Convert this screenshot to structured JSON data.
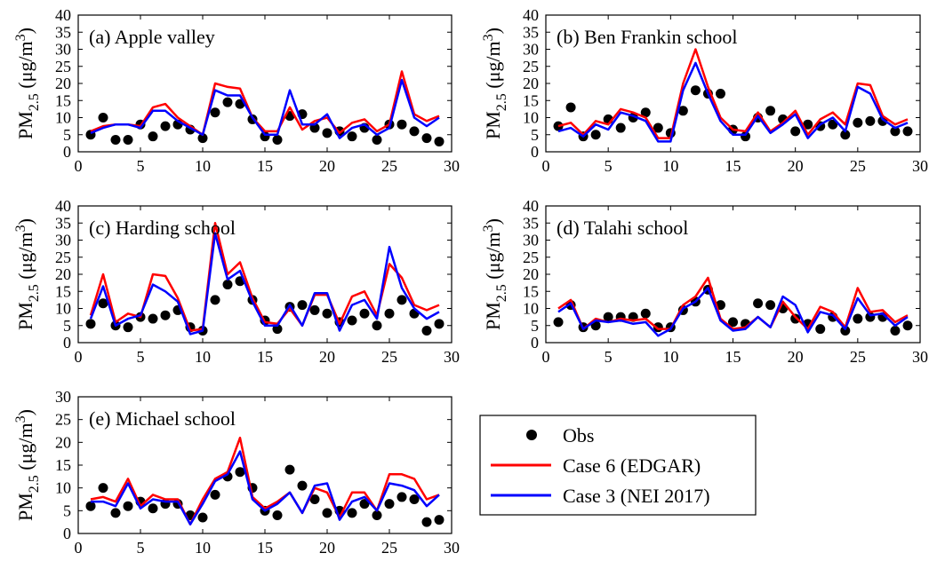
{
  "chart_data": [
    {
      "type": "line",
      "title": "(a) Apple valley",
      "ylabel": [
        "PM",
        "2.5",
        " (μg/m",
        "3",
        ")"
      ],
      "x": [
        1,
        2,
        3,
        4,
        5,
        6,
        7,
        8,
        9,
        10,
        11,
        12,
        13,
        14,
        15,
        16,
        17,
        18,
        19,
        20,
        21,
        22,
        23,
        24,
        25,
        26,
        27,
        28,
        29
      ],
      "xlim": [
        0,
        30
      ],
      "xticks": [
        0,
        5,
        10,
        15,
        20,
        25,
        30
      ],
      "ylim": [
        0,
        40
      ],
      "yticks": [
        0,
        5,
        10,
        15,
        20,
        25,
        30,
        35,
        40
      ],
      "series": [
        {
          "name": "Obs",
          "color": "#000000",
          "mode": "markers",
          "values": [
            5,
            10,
            3.5,
            3.5,
            8,
            4.5,
            7.5,
            8,
            6.5,
            4,
            11.5,
            14.5,
            14,
            9.5,
            4.5,
            3.5,
            10.5,
            11,
            7,
            5.5,
            6,
            4.5,
            7,
            3.5,
            8,
            8,
            6,
            4,
            3
          ]
        },
        {
          "name": "Case 6 (EDGAR)",
          "color": "#ff0000",
          "mode": "lines",
          "values": [
            6,
            7.5,
            8,
            8,
            7.5,
            13,
            14,
            10,
            7.5,
            5,
            20,
            19,
            18.5,
            10,
            6,
            6,
            13,
            6.5,
            9,
            10,
            5.5,
            8.5,
            9.5,
            6,
            8,
            23.5,
            11,
            9,
            10.5
          ]
        },
        {
          "name": "Case 3 (NEI 2017)",
          "color": "#0000ff",
          "mode": "lines",
          "values": [
            5.5,
            7,
            8,
            8,
            7,
            12,
            12,
            9,
            7,
            5,
            18,
            16.5,
            16.5,
            10,
            5,
            5,
            18,
            8,
            8,
            11,
            4,
            7,
            8,
            5,
            7,
            21,
            10,
            7.5,
            10
          ]
        }
      ]
    },
    {
      "type": "line",
      "title": "(b) Ben Frankin school",
      "ylabel": [
        "PM",
        "2.5",
        " (μg/m",
        "3",
        ")"
      ],
      "x": [
        1,
        2,
        3,
        4,
        5,
        6,
        7,
        8,
        9,
        10,
        11,
        12,
        13,
        14,
        15,
        16,
        17,
        18,
        19,
        20,
        21,
        22,
        23,
        24,
        25,
        26,
        27,
        28,
        29
      ],
      "xlim": [
        0,
        30
      ],
      "xticks": [
        0,
        5,
        10,
        15,
        20,
        25,
        30
      ],
      "ylim": [
        0,
        40
      ],
      "yticks": [
        0,
        5,
        10,
        15,
        20,
        25,
        30,
        35,
        40
      ],
      "series": [
        {
          "name": "Obs",
          "color": "#000000",
          "mode": "markers",
          "values": [
            7.5,
            13,
            4.5,
            5,
            9.5,
            7,
            10,
            11.5,
            7,
            5.5,
            12,
            18,
            17,
            17,
            6.5,
            4.5,
            10,
            12,
            9.5,
            6,
            8,
            7.5,
            8,
            5,
            8.5,
            9,
            9,
            6,
            6
          ]
        },
        {
          "name": "Case 6 (EDGAR)",
          "color": "#ff0000",
          "mode": "lines",
          "values": [
            7.5,
            8.5,
            5,
            9,
            8,
            12.5,
            11.5,
            10,
            4,
            4,
            20,
            30,
            19,
            10,
            6.5,
            6,
            11.5,
            6,
            8.5,
            12,
            5,
            9.5,
            11.5,
            8,
            20,
            19.5,
            10.5,
            8,
            9.5
          ]
        },
        {
          "name": "Case 3 (NEI 2017)",
          "color": "#0000ff",
          "mode": "lines",
          "values": [
            6,
            7,
            4.5,
            8,
            6.5,
            11.5,
            10.5,
            9,
            3,
            3,
            18,
            26,
            17,
            9,
            5,
            5,
            10.5,
            5.5,
            8,
            11,
            4,
            8,
            10,
            6,
            19,
            17,
            9.5,
            7,
            8.5
          ]
        }
      ]
    },
    {
      "type": "line",
      "title": "(c) Harding school",
      "ylabel": [
        "PM",
        "2.5",
        " (μg/m",
        "3",
        ")"
      ],
      "x": [
        1,
        2,
        3,
        4,
        5,
        6,
        7,
        8,
        9,
        10,
        11,
        12,
        13,
        14,
        15,
        16,
        17,
        18,
        19,
        20,
        21,
        22,
        23,
        24,
        25,
        26,
        27,
        28,
        29
      ],
      "xlim": [
        0,
        30
      ],
      "xticks": [
        0,
        5,
        10,
        15,
        20,
        25,
        30
      ],
      "ylim": [
        0,
        40
      ],
      "yticks": [
        0,
        5,
        10,
        15,
        20,
        25,
        30,
        35,
        40
      ],
      "series": [
        {
          "name": "Obs",
          "color": "#000000",
          "mode": "markers",
          "values": [
            5.5,
            11.5,
            5,
            4.5,
            7.5,
            7,
            8,
            9.5,
            4.5,
            3.5,
            12.5,
            17,
            18,
            12.5,
            6.5,
            4,
            10.5,
            11,
            9.5,
            8.5,
            6,
            6.5,
            8.5,
            5,
            8.5,
            12.5,
            8.5,
            3.5,
            5.5
          ]
        },
        {
          "name": "Case 6 (EDGAR)",
          "color": "#ff0000",
          "mode": "lines",
          "values": [
            8,
            20,
            6,
            8.5,
            7.5,
            20,
            19.5,
            13,
            3.5,
            4,
            35,
            20,
            23.5,
            13,
            6,
            5.5,
            10,
            5,
            14,
            14,
            5.5,
            13.5,
            15,
            8,
            23,
            19,
            11,
            9.5,
            11
          ]
        },
        {
          "name": "Case 3 (NEI 2017)",
          "color": "#0000ff",
          "mode": "lines",
          "values": [
            7,
            16.5,
            5,
            7,
            8,
            17,
            15,
            12,
            2.5,
            3.5,
            32,
            18.5,
            21,
            12,
            5,
            5,
            11,
            5,
            14.5,
            14.5,
            3.5,
            11,
            12.5,
            7,
            28,
            16,
            10,
            7,
            9
          ]
        }
      ]
    },
    {
      "type": "line",
      "title": "(d) Talahi school",
      "ylabel": [
        "PM",
        "2.5",
        " (μg/m",
        "3",
        ")"
      ],
      "x": [
        1,
        2,
        3,
        4,
        5,
        6,
        7,
        8,
        9,
        10,
        11,
        12,
        13,
        14,
        15,
        16,
        17,
        18,
        19,
        20,
        21,
        22,
        23,
        24,
        25,
        26,
        27,
        28,
        29
      ],
      "xlim": [
        0,
        30
      ],
      "xticks": [
        0,
        5,
        10,
        15,
        20,
        25,
        30
      ],
      "ylim": [
        0,
        40
      ],
      "yticks": [
        0,
        5,
        10,
        15,
        20,
        25,
        30,
        35,
        40
      ],
      "series": [
        {
          "name": "Obs",
          "color": "#000000",
          "mode": "markers",
          "values": [
            6,
            11,
            4.5,
            5,
            7.5,
            7.5,
            7.5,
            8.5,
            4.5,
            4.5,
            9.5,
            12,
            15.5,
            11,
            6,
            5.5,
            11.5,
            11,
            10,
            7,
            5.5,
            4,
            7.5,
            3.5,
            7,
            7.5,
            7.5,
            3.5,
            5
          ]
        },
        {
          "name": "Case 6 (EDGAR)",
          "color": "#ff0000",
          "mode": "lines",
          "values": [
            10,
            12.5,
            4,
            7,
            6,
            7,
            6.5,
            7,
            4,
            4,
            11,
            13.5,
            19,
            7,
            4,
            4.5,
            7.5,
            4.5,
            12,
            7.5,
            4,
            10.5,
            9,
            4.5,
            16,
            9,
            9.5,
            6,
            8
          ]
        },
        {
          "name": "Case 3 (NEI 2017)",
          "color": "#0000ff",
          "mode": "lines",
          "values": [
            9,
            11.5,
            4,
            6.5,
            6,
            6.5,
            5.5,
            6,
            2,
            4,
            10,
            12,
            16,
            6.5,
            3.5,
            4,
            7.5,
            4.5,
            13.5,
            11,
            3,
            9,
            8,
            4,
            13,
            8,
            8.5,
            5,
            7.5
          ]
        }
      ]
    },
    {
      "type": "line",
      "title": "(e) Michael school",
      "ylabel": [
        "PM",
        "2.5",
        " (μg/m",
        "3",
        ")"
      ],
      "x": [
        1,
        2,
        3,
        4,
        5,
        6,
        7,
        8,
        9,
        10,
        11,
        12,
        13,
        14,
        15,
        16,
        17,
        18,
        19,
        20,
        21,
        22,
        23,
        24,
        25,
        26,
        27,
        28,
        29
      ],
      "xlim": [
        0,
        30
      ],
      "xticks": [
        0,
        5,
        10,
        15,
        20,
        25,
        30
      ],
      "ylim": [
        0,
        30
      ],
      "yticks": [
        0,
        5,
        10,
        15,
        20,
        25,
        30
      ],
      "series": [
        {
          "name": "Obs",
          "color": "#000000",
          "mode": "markers",
          "values": [
            6,
            10,
            4.5,
            6,
            7,
            5.5,
            6.5,
            6.5,
            4,
            3.5,
            8.5,
            12.5,
            13.5,
            10,
            5,
            4,
            14,
            10.5,
            7.5,
            4.5,
            5,
            4.5,
            6.5,
            4,
            6.5,
            8,
            7.5,
            2.5,
            3
          ]
        },
        {
          "name": "Case 6 (EDGAR)",
          "color": "#ff0000",
          "mode": "lines",
          "values": [
            7.5,
            8,
            7,
            12,
            6,
            8.5,
            7.5,
            7.5,
            2,
            7.5,
            12,
            13.5,
            21,
            8,
            5.5,
            7,
            9,
            4.5,
            10,
            9,
            3.5,
            9,
            9,
            5,
            13,
            13,
            12,
            7.5,
            8.5
          ]
        },
        {
          "name": "Case 3 (NEI 2017)",
          "color": "#0000ff",
          "mode": "lines",
          "values": [
            7,
            7,
            6,
            11,
            5.5,
            7.5,
            7,
            7,
            2,
            6.5,
            11.5,
            13,
            18,
            7.5,
            5,
            6.5,
            9,
            4.5,
            10.5,
            11,
            3,
            7,
            8,
            5,
            11,
            10.5,
            9.5,
            6,
            8.5
          ]
        }
      ]
    }
  ]
}
